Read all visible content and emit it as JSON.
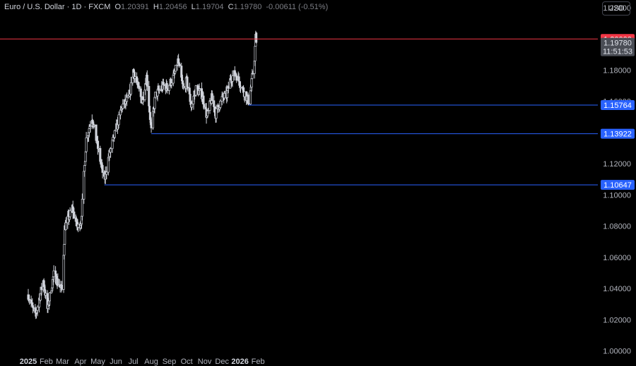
{
  "header": {
    "symbol": "Euro / U.S. Dollar",
    "interval": "1D",
    "exchange": "FXCM",
    "open": "1.20391",
    "high": "1.20456",
    "low": "1.19704",
    "close": "1.19780",
    "change": "-0.00611 (-0.51%)"
  },
  "currency_button": "USD",
  "colors": {
    "background": "#000000",
    "candle": "#d1d4dc",
    "support_line": "#2962ff",
    "resistance_line": "#f23645",
    "axis_text": "#b2b5be"
  },
  "chart_data": {
    "type": "candlestick",
    "x_labels": [
      "2025",
      "Feb",
      "Mar",
      "Apr",
      "May",
      "Jun",
      "Jul",
      "Aug",
      "Sep",
      "Oct",
      "Nov",
      "Dec",
      "2026",
      "Feb"
    ],
    "y_tick_labels": [
      "1.00000",
      "1.02000",
      "1.04000",
      "1.06000",
      "1.08000",
      "1.10000",
      "1.12000",
      "1.14000",
      "1.16000",
      "1.18000",
      "1.22000"
    ],
    "ylim": [
      1.0,
      1.225
    ],
    "price_path": [
      [
        "2025-01-01",
        1.036
      ],
      [
        "2025-01-13",
        1.022
      ],
      [
        "2025-01-27",
        1.045
      ],
      [
        "2025-02-03",
        1.027
      ],
      [
        "2025-02-14",
        1.049
      ],
      [
        "2025-02-28",
        1.039
      ],
      [
        "2025-03-05",
        1.079
      ],
      [
        "2025-03-10",
        1.084
      ],
      [
        "2025-03-18",
        1.091
      ],
      [
        "2025-03-27",
        1.079
      ],
      [
        "2025-04-02",
        1.083
      ],
      [
        "2025-04-11",
        1.136
      ],
      [
        "2025-04-21",
        1.15
      ],
      [
        "2025-05-01",
        1.13
      ],
      [
        "2025-05-12",
        1.109
      ],
      [
        "2025-05-20",
        1.125
      ],
      [
        "2025-06-02",
        1.143
      ],
      [
        "2025-06-12",
        1.157
      ],
      [
        "2025-06-24",
        1.162
      ],
      [
        "2025-07-01",
        1.18
      ],
      [
        "2025-07-16",
        1.16
      ],
      [
        "2025-07-24",
        1.176
      ],
      [
        "2025-08-01",
        1.141
      ],
      [
        "2025-08-08",
        1.164
      ],
      [
        "2025-08-22",
        1.17
      ],
      [
        "2025-08-29",
        1.169
      ],
      [
        "2025-09-09",
        1.176
      ],
      [
        "2025-09-16",
        1.186
      ],
      [
        "2025-09-25",
        1.168
      ],
      [
        "2025-10-01",
        1.173
      ],
      [
        "2025-10-09",
        1.157
      ],
      [
        "2025-10-17",
        1.168
      ],
      [
        "2025-10-28",
        1.164
      ],
      [
        "2025-11-05",
        1.15
      ],
      [
        "2025-11-13",
        1.162
      ],
      [
        "2025-11-20",
        1.152
      ],
      [
        "2025-12-01",
        1.162
      ],
      [
        "2025-12-09",
        1.164
      ],
      [
        "2025-12-16",
        1.175
      ],
      [
        "2025-12-24",
        1.178
      ],
      [
        "2026-01-08",
        1.166
      ],
      [
        "2026-01-16",
        1.16
      ],
      [
        "2026-01-20",
        1.169
      ],
      [
        "2026-01-26",
        1.188
      ],
      [
        "2026-01-28",
        1.201
      ],
      [
        "2026-01-29",
        1.198
      ]
    ],
    "last_candle": {
      "date": "2026-01-29",
      "open": 1.20391,
      "high": 1.20456,
      "low": 1.19704,
      "close": 1.1978
    },
    "horizontal_lines": [
      {
        "label": "1.20000",
        "value": 1.2,
        "kind": "resistance"
      },
      {
        "label": "1.15764",
        "value": 1.15764,
        "kind": "support",
        "start_date": "2026-01-16"
      },
      {
        "label": "1.13922",
        "value": 1.13922,
        "kind": "support",
        "start_date": "2025-08-01"
      },
      {
        "label": "1.10647",
        "value": 1.10647,
        "kind": "support",
        "start_date": "2025-05-12"
      }
    ],
    "last_price_label": "1.19780",
    "countdown_label": "11:51:53",
    "grid": false
  }
}
